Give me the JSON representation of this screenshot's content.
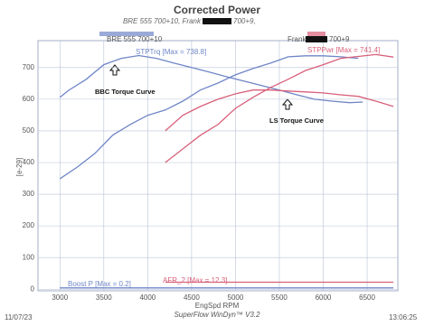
{
  "chart_data": {
    "type": "line",
    "title": "Corrected Power",
    "subtitle": "BRE 555 700+10, Frank",
    "subtitle_end": "700+9,",
    "x_label": "EngSpd RPM",
    "y_label": "[e-29]",
    "legend": [
      {
        "text": "BRE 555 700+10",
        "color": "#6f86c7"
      },
      {
        "text": "Frank",
        "text_end": "700+9",
        "color": "#d8607a"
      }
    ],
    "annotations": [
      {
        "text": "STPTrq [Max = 738.8]",
        "color": "#6f86c7"
      },
      {
        "text": "STPPwr [Max = 741.4]",
        "color": "#d8607a"
      },
      {
        "text": "BBC Torque Curve",
        "color": "#111111"
      },
      {
        "text": "LS Torque Curve",
        "color": "#111111"
      },
      {
        "text": "Boost P [Max = 0.2]",
        "color": "#6f86c7"
      },
      {
        "text": "AFR_2 [Max = 12.3]",
        "color": "#d8607a"
      }
    ],
    "footer": [
      "11/07/23",
      "SuperFlow WinDyn™ V3.2",
      "13:06:25"
    ],
    "xlim": [
      2750,
      6850
    ],
    "ylim": [
      -5,
      785
    ],
    "xticks": [
      3000,
      3500,
      4000,
      4500,
      5000,
      5500,
      6000,
      6500
    ],
    "yticks": [
      0,
      100,
      200,
      300,
      400,
      500,
      600,
      700
    ],
    "grid": true,
    "series": [
      {
        "color": "#6f86c7",
        "x": [
          3000,
          3100,
          3300,
          3500,
          3700,
          3900,
          4100,
          4300,
          4500,
          4700,
          4900,
          5100,
          5300,
          5500,
          5700,
          5900,
          6100,
          6300,
          6450
        ],
        "values": [
          606,
          628,
          663,
          709,
          729,
          738,
          729,
          714,
          700,
          686,
          671,
          657,
          643,
          629,
          614,
          600,
          594,
          589,
          591
        ]
      },
      {
        "color": "#6f86c7",
        "x": [
          3000,
          3200,
          3400,
          3600,
          3800,
          4000,
          4200,
          4400,
          4600,
          4800,
          5000,
          5200,
          5400,
          5600,
          5800,
          6000,
          6200,
          6400
        ],
        "values": [
          349,
          386,
          429,
          486,
          520,
          549,
          566,
          594,
          629,
          651,
          677,
          697,
          714,
          734,
          737,
          737,
          734,
          729
        ]
      },
      {
        "color": "#d8607a",
        "x": [
          4200,
          4400,
          4600,
          4800,
          5000,
          5200,
          5400,
          5600,
          5800,
          6000,
          6200,
          6400,
          6600,
          6800
        ],
        "values": [
          500,
          549,
          577,
          600,
          617,
          629,
          629,
          626,
          623,
          620,
          614,
          609,
          594,
          577
        ]
      },
      {
        "color": "#d8607a",
        "x": [
          4200,
          4400,
          4600,
          4800,
          5000,
          5200,
          5400,
          5600,
          5800,
          6000,
          6200,
          6400,
          6600,
          6800
        ],
        "values": [
          400,
          443,
          486,
          520,
          571,
          606,
          637,
          663,
          691,
          709,
          729,
          735,
          741,
          733
        ]
      },
      {
        "color": "#6f86c7",
        "x": [
          3000,
          6800
        ],
        "values": [
          4,
          4
        ]
      },
      {
        "color": "#d8607a",
        "x": [
          4200,
          6800
        ],
        "values": [
          22,
          22
        ]
      }
    ]
  }
}
